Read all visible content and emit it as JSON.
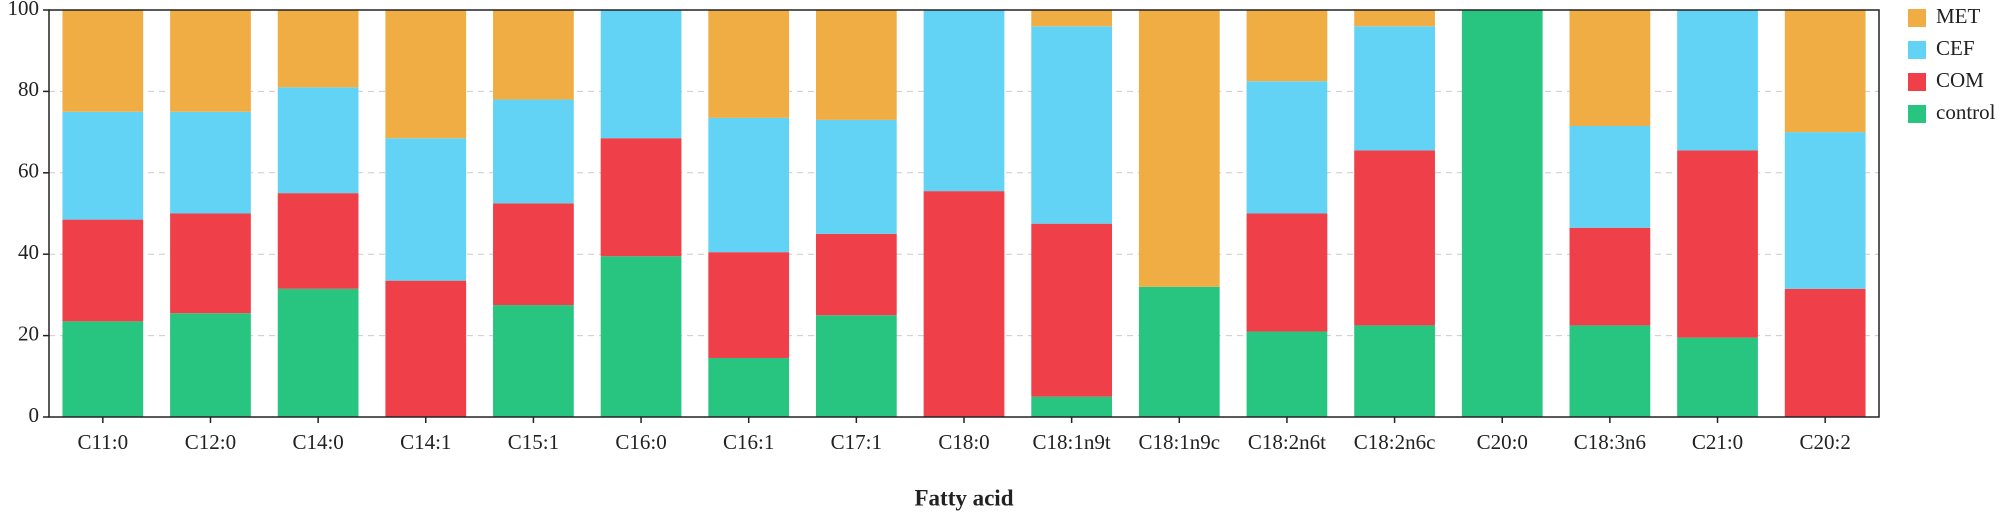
{
  "chart_data": {
    "type": "stacked_bar",
    "x_label": "Fatty acid",
    "categories": [
      "C11:0",
      "C12:0",
      "C14:0",
      "C14:1",
      "C15:1",
      "C16:0",
      "C16:1",
      "C17:1",
      "C18:0",
      "C18:1n9t",
      "C18:1n9c",
      "C18:2n6t",
      "C18:2n6c",
      "C20:0",
      "C18:3n6",
      "C21:0",
      "C20:2"
    ],
    "series": [
      {
        "name": "control",
        "color": "#28c581",
        "values": [
          23.5,
          25.5,
          31.5,
          0,
          27.5,
          39.5,
          14.5,
          25,
          0,
          5,
          32,
          21,
          22.5,
          100,
          22.5,
          19.5,
          0
        ]
      },
      {
        "name": "COM",
        "color": "#ef4049",
        "values": [
          25,
          24.5,
          23.5,
          33.5,
          25,
          29,
          26,
          20,
          55.5,
          42.5,
          0,
          29,
          43,
          0,
          24,
          46,
          31.5
        ]
      },
      {
        "name": "CEF",
        "color": "#62d3f5",
        "values": [
          26.5,
          25,
          26,
          35,
          25.5,
          31.5,
          33,
          28,
          44.5,
          48.5,
          0,
          32.5,
          30.5,
          0,
          25,
          34.5,
          38.5
        ]
      },
      {
        "name": "MET",
        "color": "#f0ad44",
        "values": [
          25,
          25,
          19,
          31.5,
          22,
          0,
          26.5,
          27,
          0,
          4,
          68,
          17.5,
          4,
          0,
          28.5,
          0,
          30
        ]
      }
    ],
    "ylim": [
      0,
      100
    ],
    "yticks": [
      0,
      20,
      40,
      60,
      80,
      100
    ],
    "grid": true,
    "legend": "right"
  }
}
